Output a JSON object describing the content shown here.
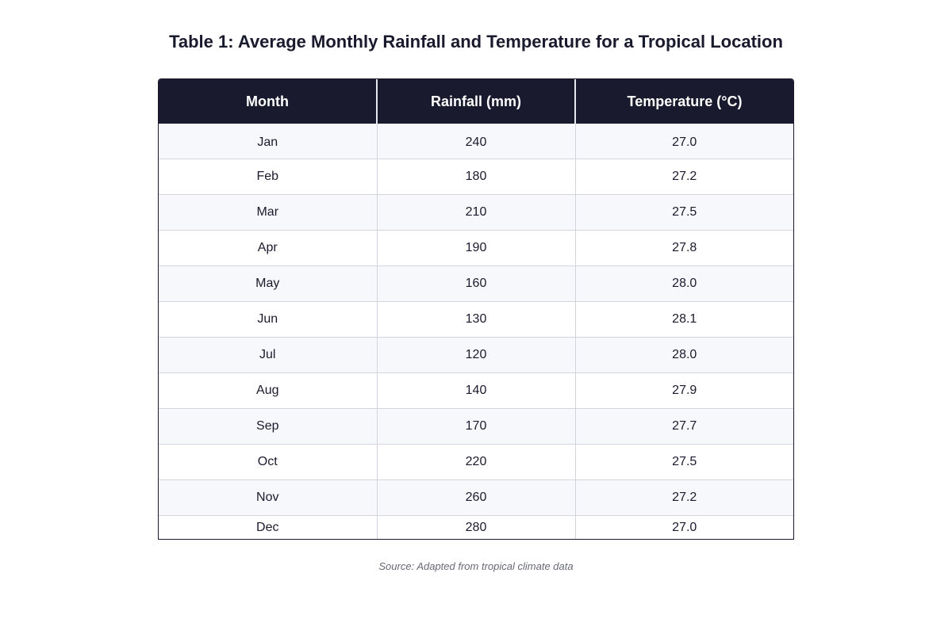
{
  "chart_data": {
    "type": "table",
    "title": "Table 1: Average Monthly Rainfall and Temperature for a Tropical Location",
    "columns": [
      "Month",
      "Rainfall (mm)",
      "Temperature (°C)"
    ],
    "rows": [
      [
        "Jan",
        "240",
        "27.0"
      ],
      [
        "Feb",
        "180",
        "27.2"
      ],
      [
        "Mar",
        "210",
        "27.5"
      ],
      [
        "Apr",
        "190",
        "27.8"
      ],
      [
        "May",
        "160",
        "28.0"
      ],
      [
        "Jun",
        "130",
        "28.1"
      ],
      [
        "Jul",
        "120",
        "28.0"
      ],
      [
        "Aug",
        "140",
        "27.9"
      ],
      [
        "Sep",
        "170",
        "27.7"
      ],
      [
        "Oct",
        "220",
        "27.5"
      ],
      [
        "Nov",
        "260",
        "27.2"
      ],
      [
        "Dec",
        "280",
        "27.0"
      ]
    ],
    "source": "Source: Adapted from tropical climate data"
  },
  "colors": {
    "header_bg": "#1a1a2e",
    "header_text": "#ffffff",
    "row_alt_bg": "#f7f8fb",
    "grid": "#d4d4dc"
  }
}
